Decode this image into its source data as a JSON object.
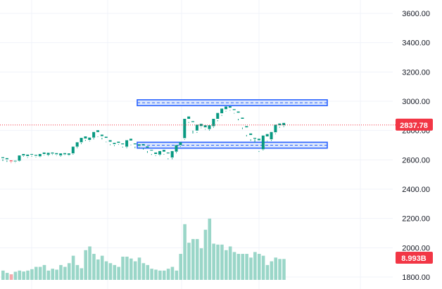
{
  "chart_data": {
    "type": "candlestick",
    "grid": true,
    "price_axis": {
      "side": "right",
      "ticks": [
        3600,
        3400,
        3200,
        3000,
        2800,
        2600,
        2400,
        2200,
        2000,
        1800
      ],
      "tick_labels": [
        "3600.00",
        "3400.00",
        "3200.00",
        "3000.00",
        "2800.00",
        "2600.00",
        "2400.00",
        "2200.00",
        "2000.00",
        "1800.00"
      ],
      "range": [
        1790,
        3680
      ]
    },
    "last_price": {
      "value": 2837.78,
      "label": "2837.78"
    },
    "volume_badge": {
      "label": "8.993B"
    },
    "zones": [
      {
        "name": "resistance",
        "low": 2970,
        "high": 3010
      },
      {
        "name": "support",
        "low": 2680,
        "high": 2720
      }
    ],
    "candles": [
      [
        2612,
        2618,
        2604,
        2592
      ],
      [
        2604,
        2612,
        2596,
        2586
      ],
      [
        2596,
        2590,
        2583,
        2579
      ],
      [
        2590,
        2594,
        2580,
        2578
      ],
      [
        2594,
        2630,
        2590,
        2588
      ],
      [
        2630,
        2640,
        2626,
        2622
      ],
      [
        2626,
        2636,
        2618,
        2614
      ],
      [
        2636,
        2640,
        2628,
        2622
      ],
      [
        2628,
        2634,
        2621,
        2618
      ],
      [
        2624,
        2640,
        2620,
        2618
      ],
      [
        2640,
        2650,
        2633,
        2630
      ],
      [
        2634,
        2648,
        2630,
        2626
      ],
      [
        2643,
        2650,
        2638,
        2634
      ],
      [
        2638,
        2646,
        2630,
        2628
      ],
      [
        2630,
        2644,
        2626,
        2622
      ],
      [
        2638,
        2646,
        2632,
        2630
      ],
      [
        2634,
        2644,
        2630,
        2628
      ],
      [
        2644,
        2690,
        2640,
        2636
      ],
      [
        2690,
        2720,
        2686,
        2680
      ],
      [
        2720,
        2750,
        2714,
        2708
      ],
      [
        2746,
        2760,
        2736,
        2730
      ],
      [
        2736,
        2752,
        2730,
        2726
      ],
      [
        2752,
        2790,
        2748,
        2740
      ],
      [
        2790,
        2802,
        2760,
        2756
      ],
      [
        2762,
        2772,
        2750,
        2740
      ],
      [
        2750,
        2758,
        2724,
        2720
      ],
      [
        2724,
        2734,
        2706,
        2700
      ],
      [
        2708,
        2716,
        2700,
        2694
      ],
      [
        2716,
        2724,
        2706,
        2702
      ],
      [
        2706,
        2712,
        2690,
        2684
      ],
      [
        2690,
        2734,
        2686,
        2680
      ],
      [
        2732,
        2744,
        2704,
        2700
      ],
      [
        2706,
        2712,
        2690,
        2680
      ],
      [
        2696,
        2706,
        2686,
        2680
      ],
      [
        2700,
        2708,
        2680,
        2670
      ],
      [
        2684,
        2692,
        2660,
        2648
      ],
      [
        2664,
        2668,
        2640,
        2634
      ],
      [
        2640,
        2650,
        2630,
        2626
      ],
      [
        2636,
        2660,
        2630,
        2626
      ],
      [
        2656,
        2668,
        2640,
        2636
      ],
      [
        2644,
        2650,
        2610,
        2604
      ],
      [
        2616,
        2660,
        2612,
        2604
      ],
      [
        2656,
        2700,
        2652,
        2646
      ],
      [
        2700,
        2720,
        2692,
        2688
      ],
      [
        2748,
        2880,
        2740,
        2736
      ],
      [
        2880,
        2896,
        2858,
        2852
      ],
      [
        2858,
        2864,
        2800,
        2780
      ],
      [
        2800,
        2840,
        2790,
        2784
      ],
      [
        2830,
        2846,
        2820,
        2816
      ],
      [
        2822,
        2836,
        2810,
        2806
      ],
      [
        2810,
        2836,
        2806,
        2800
      ],
      [
        2830,
        2880,
        2826,
        2820
      ],
      [
        2880,
        2920,
        2870,
        2864
      ],
      [
        2918,
        2950,
        2906,
        2900
      ],
      [
        2946,
        2964,
        2934,
        2930
      ],
      [
        2956,
        2966,
        2940,
        2936
      ],
      [
        2940,
        2946,
        2920,
        2916
      ],
      [
        2922,
        2930,
        2880,
        2870
      ],
      [
        2880,
        2888,
        2820,
        2810
      ],
      [
        2822,
        2830,
        2770,
        2760
      ],
      [
        2770,
        2780,
        2740,
        2730
      ],
      [
        2744,
        2750,
        2740,
        2720
      ],
      [
        2734,
        2744,
        2660,
        2654
      ],
      [
        2672,
        2766,
        2668,
        2664
      ],
      [
        2760,
        2776,
        2730,
        2726
      ],
      [
        2740,
        2790,
        2736,
        2730
      ],
      [
        2788,
        2840,
        2780,
        2776
      ],
      [
        2836,
        2848,
        2826,
        2820
      ],
      [
        2836,
        2852,
        2830,
        2824
      ]
    ],
    "volume": [
      4.0,
      3.0,
      2.4,
      3.5,
      4.0,
      3.6,
      4.0,
      4.6,
      5.6,
      5.6,
      6.4,
      4.0,
      4.8,
      4.4,
      6.4,
      5.6,
      7.2,
      10.4,
      6.4,
      5.0,
      12.8,
      14.4,
      11.2,
      8.8,
      10.4,
      8.0,
      7.2,
      6.4,
      5.6,
      10.0,
      10.0,
      9.2,
      8.0,
      9.6,
      7.2,
      6.4,
      4.8,
      4.4,
      4.0,
      4.0,
      4.8,
      5.6,
      4.0,
      11.2,
      24.0,
      16.0,
      17.6,
      17.6,
      13.6,
      21.6,
      26.4,
      15.6,
      15.2,
      15.2,
      12.8,
      14.4,
      12.0,
      11.2,
      11.2,
      11.2,
      9.6,
      12.0,
      11.2,
      10.4,
      6.4,
      8.0,
      9.6,
      9.0,
      9.0
    ]
  }
}
